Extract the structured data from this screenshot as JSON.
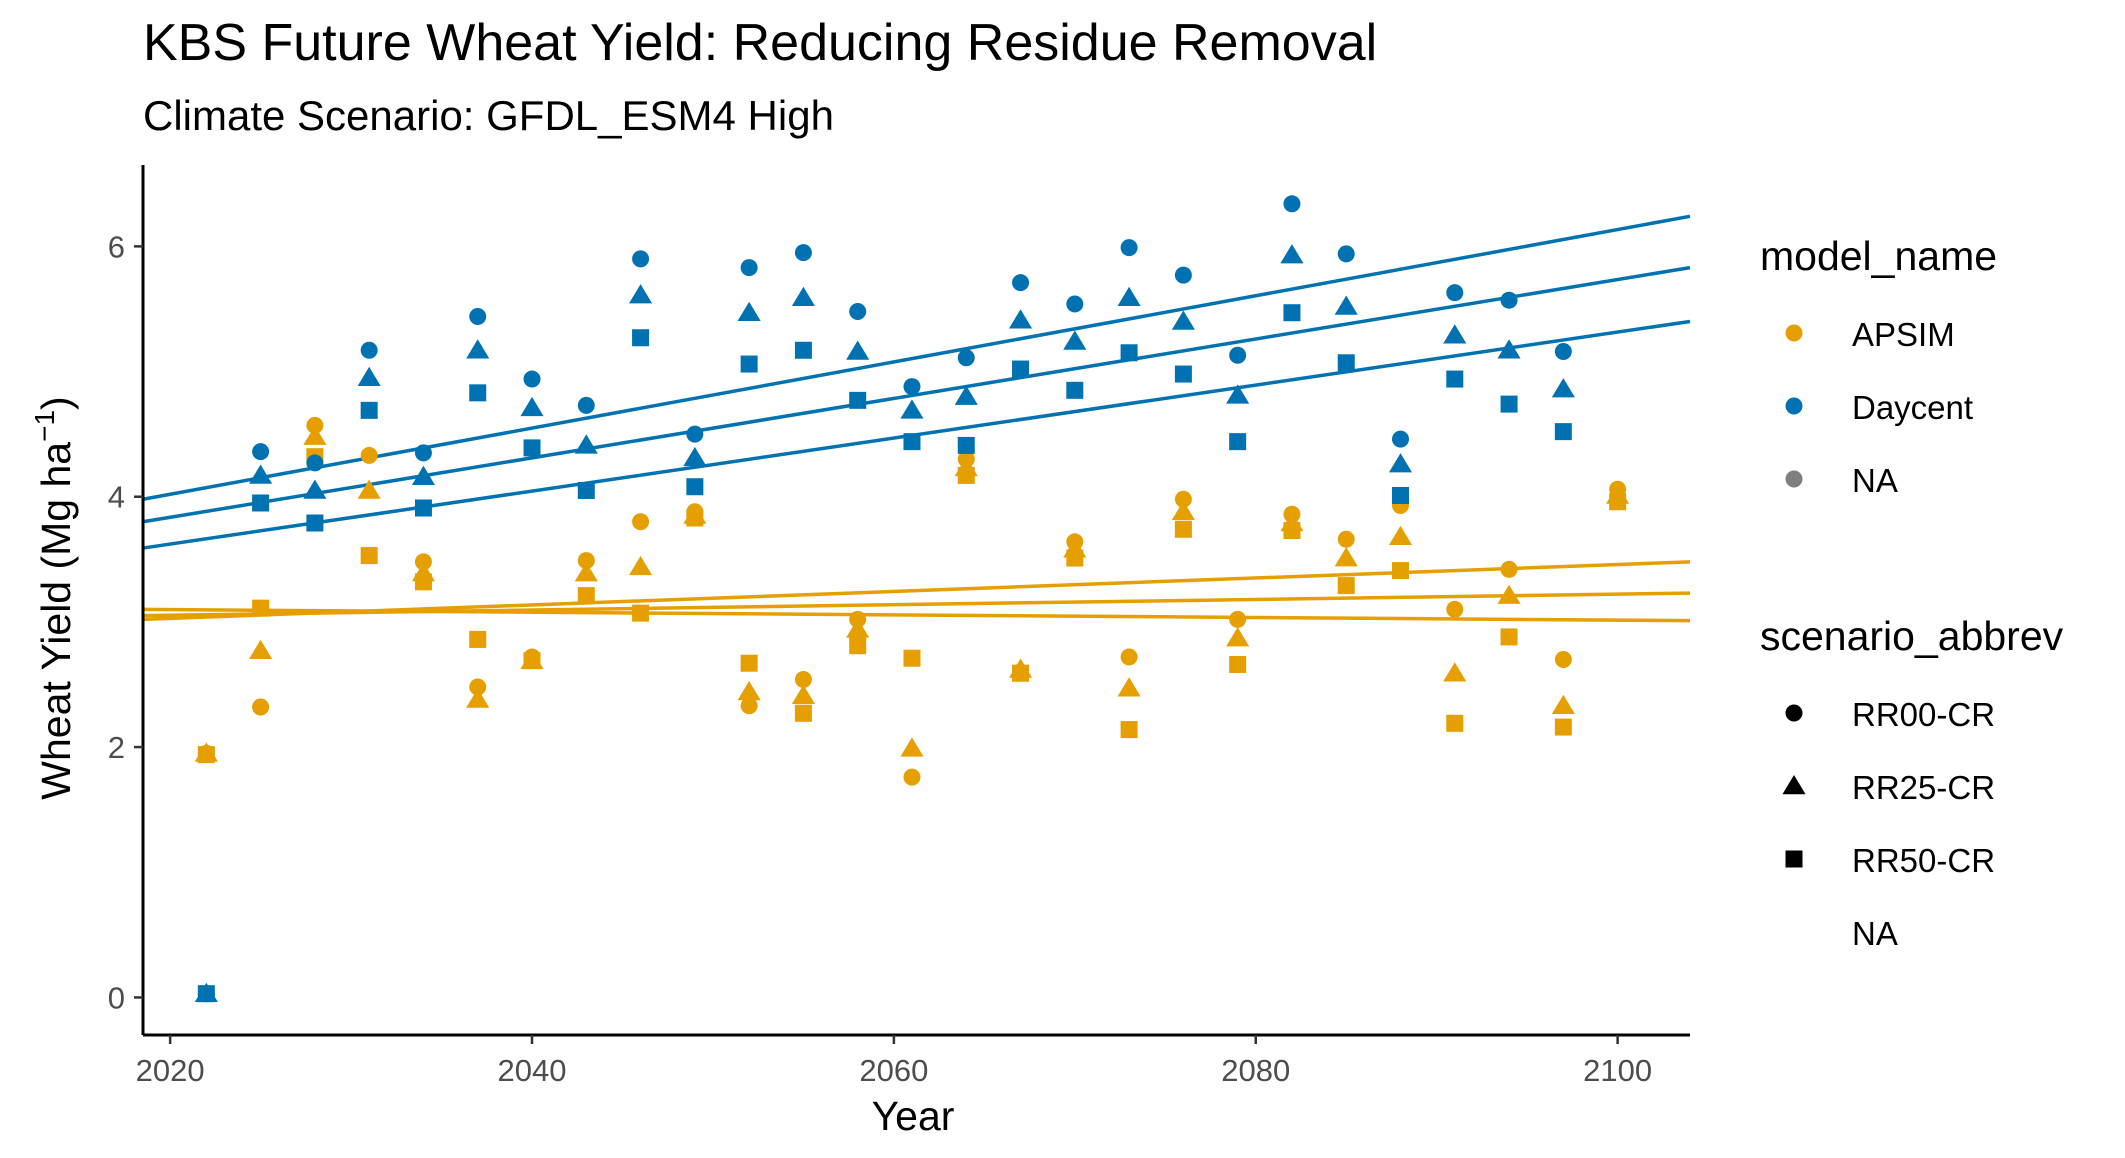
{
  "chart_data": {
    "type": "scatter",
    "title": "KBS Future Wheat Yield: Reducing Residue Removal",
    "subtitle": "Climate Scenario: GFDL_ESM4 High",
    "xlabel": "Year",
    "ylabel_main": "Wheat Yield (Mg ha",
    "ylabel_sup": "−1",
    "ylabel_close": ")",
    "xlim": [
      2018.5,
      2104
    ],
    "ylim": [
      -0.3,
      6.65
    ],
    "x_ticks": [
      2020,
      2040,
      2060,
      2080,
      2100
    ],
    "y_ticks": [
      0,
      2,
      4,
      6
    ],
    "grid": false,
    "legend_position": "right",
    "colors": {
      "APSIM": "#E69F00",
      "Daycent": "#0072B2",
      "NA": "#7f7f7f"
    },
    "legends": {
      "color": {
        "title": "model_name",
        "entries": [
          {
            "label": "APSIM",
            "color": "#E69F00"
          },
          {
            "label": "Daycent",
            "color": "#0072B2"
          },
          {
            "label": "NA",
            "color": "#7f7f7f"
          }
        ]
      },
      "shape": {
        "title": "scenario_abbrev",
        "entries": [
          {
            "label": "RR00-CR",
            "shape": "circle"
          },
          {
            "label": "RR25-CR",
            "shape": "triangle"
          },
          {
            "label": "RR50-CR",
            "shape": "square"
          },
          {
            "label": "NA",
            "shape": "none"
          }
        ]
      }
    },
    "series": [
      {
        "model": "APSIM",
        "scenario": "RR00-CR",
        "shape": "circle",
        "color": "#E69F00",
        "x": [
          2022,
          2025,
          2028,
          2031,
          2034,
          2037,
          2040,
          2043,
          2046,
          2049,
          2052,
          2055,
          2058,
          2061,
          2064,
          2067,
          2070,
          2073,
          2076,
          2079,
          2082,
          2085,
          2088,
          2091,
          2094,
          2097,
          2100
        ],
        "y": [
          1.95,
          2.32,
          4.57,
          4.33,
          3.48,
          2.48,
          2.72,
          3.49,
          3.8,
          3.88,
          2.33,
          2.54,
          3.02,
          1.76,
          4.3,
          2.6,
          3.64,
          2.72,
          3.98,
          3.02,
          3.86,
          3.66,
          3.93,
          3.1,
          3.42,
          2.7,
          4.06
        ]
      },
      {
        "model": "APSIM",
        "scenario": "RR25-CR",
        "shape": "triangle",
        "color": "#E69F00",
        "x": [
          2022,
          2025,
          2028,
          2031,
          2034,
          2037,
          2040,
          2043,
          2046,
          2049,
          2052,
          2055,
          2058,
          2061,
          2064,
          2067,
          2070,
          2073,
          2076,
          2079,
          2082,
          2085,
          2088,
          2091,
          2094,
          2097,
          2100
        ],
        "y": [
          1.95,
          2.77,
          4.48,
          4.05,
          3.39,
          2.38,
          2.69,
          3.39,
          3.44,
          3.85,
          2.44,
          2.41,
          2.94,
          1.99,
          4.23,
          2.62,
          3.58,
          2.47,
          3.88,
          2.87,
          3.79,
          3.51,
          3.68,
          2.59,
          3.21,
          2.33,
          4.01
        ]
      },
      {
        "model": "APSIM",
        "scenario": "RR50-CR",
        "shape": "square",
        "color": "#E69F00",
        "x": [
          2022,
          2025,
          2028,
          2031,
          2034,
          2037,
          2040,
          2043,
          2046,
          2049,
          2052,
          2055,
          2058,
          2061,
          2064,
          2067,
          2070,
          2073,
          2076,
          2079,
          2082,
          2085,
          2088,
          2091,
          2094,
          2097,
          2100
        ],
        "y": [
          1.94,
          3.11,
          4.32,
          3.53,
          3.32,
          2.86,
          2.69,
          3.21,
          3.07,
          3.83,
          2.67,
          2.27,
          2.81,
          2.71,
          4.17,
          2.59,
          3.51,
          2.14,
          3.74,
          2.66,
          3.73,
          3.29,
          3.41,
          2.19,
          2.88,
          2.16,
          3.96
        ]
      },
      {
        "model": "Daycent",
        "scenario": "RR00-CR",
        "shape": "circle",
        "color": "#0072B2",
        "x": [
          2022,
          2025,
          2028,
          2031,
          2034,
          2037,
          2040,
          2043,
          2046,
          2049,
          2052,
          2055,
          2058,
          2061,
          2064,
          2067,
          2070,
          2073,
          2076,
          2079,
          2082,
          2085,
          2088,
          2091,
          2094,
          2097
        ],
        "y": [
          0.03,
          4.36,
          4.27,
          5.17,
          4.35,
          5.44,
          4.94,
          4.73,
          5.9,
          4.5,
          5.83,
          5.95,
          5.48,
          4.88,
          5.11,
          5.71,
          5.54,
          5.99,
          5.77,
          5.13,
          6.34,
          5.94,
          4.46,
          5.63,
          5.57,
          5.16
        ]
      },
      {
        "model": "Daycent",
        "scenario": "RR25-CR",
        "shape": "triangle",
        "color": "#0072B2",
        "x": [
          2022,
          2025,
          2028,
          2031,
          2034,
          2037,
          2040,
          2043,
          2046,
          2049,
          2052,
          2055,
          2058,
          2061,
          2064,
          2067,
          2070,
          2073,
          2076,
          2079,
          2082,
          2085,
          2088,
          2091,
          2094,
          2097
        ],
        "y": [
          0.03,
          4.17,
          4.05,
          4.95,
          4.16,
          5.17,
          4.71,
          4.41,
          5.61,
          4.31,
          5.47,
          5.59,
          5.16,
          4.69,
          4.8,
          5.41,
          5.24,
          5.59,
          5.4,
          4.81,
          5.93,
          5.52,
          4.26,
          5.29,
          5.17,
          4.86
        ]
      },
      {
        "model": "Daycent",
        "scenario": "RR50-CR",
        "shape": "square",
        "color": "#0072B2",
        "x": [
          2022,
          2025,
          2028,
          2031,
          2034,
          2037,
          2040,
          2043,
          2046,
          2049,
          2052,
          2055,
          2058,
          2061,
          2064,
          2067,
          2070,
          2073,
          2076,
          2079,
          2082,
          2085,
          2088,
          2091,
          2094,
          2097
        ],
        "y": [
          0.03,
          3.95,
          3.79,
          4.69,
          3.91,
          4.83,
          4.39,
          4.05,
          5.27,
          4.08,
          5.06,
          5.17,
          4.77,
          4.44,
          4.41,
          5.02,
          4.85,
          5.15,
          4.98,
          4.44,
          5.47,
          5.07,
          4.01,
          4.94,
          4.74,
          4.52
        ]
      }
    ],
    "trendlines": [
      {
        "model": "Daycent",
        "color": "#0072B2",
        "x": [
          2018.5,
          2104
        ],
        "y": [
          3.98,
          6.24
        ]
      },
      {
        "model": "Daycent",
        "color": "#0072B2",
        "x": [
          2018.5,
          2104
        ],
        "y": [
          3.8,
          5.83
        ]
      },
      {
        "model": "Daycent",
        "color": "#0072B2",
        "x": [
          2018.5,
          2104
        ],
        "y": [
          3.59,
          5.4
        ]
      },
      {
        "model": "APSIM",
        "color": "#E69F00",
        "x": [
          2018.5,
          2104
        ],
        "y": [
          3.02,
          3.48
        ]
      },
      {
        "model": "APSIM",
        "color": "#E69F00",
        "x": [
          2018.5,
          2104
        ],
        "y": [
          3.05,
          3.23
        ]
      },
      {
        "model": "APSIM",
        "color": "#E69F00",
        "x": [
          2018.5,
          2104
        ],
        "y": [
          3.1,
          3.01
        ]
      }
    ]
  }
}
